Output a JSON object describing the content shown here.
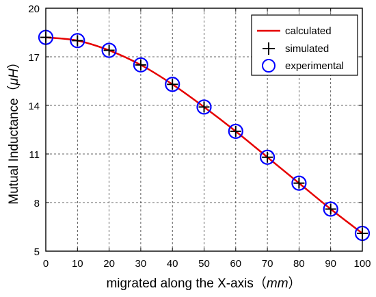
{
  "chart_data": {
    "type": "line",
    "xlabel_prefix": "migrated along the X-axis（",
    "xlabel_unit": "mm",
    "xlabel_suffix": "）",
    "ylabel_prefix": "Mutual Inductance（",
    "ylabel_unit": "μH",
    "ylabel_suffix": "）",
    "xlim": [
      0,
      100
    ],
    "ylim": [
      5,
      20
    ],
    "xticks": [
      0,
      10,
      20,
      30,
      40,
      50,
      60,
      70,
      80,
      90,
      100
    ],
    "yticks": [
      5,
      8,
      11,
      14,
      17,
      20
    ],
    "grid": "dashed",
    "legend_position": "top-right",
    "series": [
      {
        "name": "calculated",
        "style": "line",
        "color": "#e60000",
        "x": [
          0,
          10,
          20,
          30,
          40,
          50,
          60,
          70,
          80,
          90,
          100
        ],
        "y": [
          18.2,
          18.0,
          17.4,
          16.5,
          15.3,
          13.9,
          12.4,
          10.8,
          9.2,
          7.6,
          6.1
        ]
      },
      {
        "name": "simulated",
        "style": "plus",
        "color": "#000000",
        "x": [
          0,
          10,
          20,
          30,
          40,
          50,
          60,
          70,
          80,
          90,
          100
        ],
        "y": [
          18.2,
          18.0,
          17.4,
          16.5,
          15.3,
          13.9,
          12.4,
          10.8,
          9.2,
          7.6,
          6.1
        ]
      },
      {
        "name": "experimental",
        "style": "circle",
        "color": "#0000ff",
        "x": [
          0,
          10,
          20,
          30,
          40,
          50,
          60,
          70,
          80,
          90,
          100
        ],
        "y": [
          18.2,
          18.0,
          17.4,
          16.5,
          15.3,
          13.9,
          12.4,
          10.8,
          9.2,
          7.6,
          6.1
        ]
      }
    ]
  }
}
